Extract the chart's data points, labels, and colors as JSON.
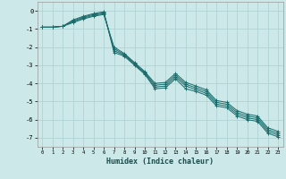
{
  "xlabel": "Humidex (Indice chaleur)",
  "bg_color": "#cce8e8",
  "grid_color": "#aacfcf",
  "line_color": "#1a6b6b",
  "xlim": [
    -0.5,
    23.5
  ],
  "ylim": [
    -7.5,
    0.5
  ],
  "xticks": [
    0,
    1,
    2,
    3,
    4,
    5,
    6,
    7,
    8,
    9,
    10,
    11,
    12,
    13,
    14,
    15,
    16,
    17,
    18,
    19,
    20,
    21,
    22,
    23
  ],
  "yticks": [
    0,
    -1,
    -2,
    -3,
    -4,
    -5,
    -6,
    -7
  ],
  "series": [
    {
      "x": [
        0,
        1,
        2,
        3,
        4,
        5,
        6,
        7,
        8,
        9,
        10,
        11,
        12,
        13,
        14,
        15,
        16,
        17,
        18,
        19,
        20,
        21,
        22,
        23
      ],
      "y": [
        -0.9,
        -0.9,
        -0.85,
        -0.5,
        -0.3,
        -0.15,
        -0.05,
        -2.3,
        -2.5,
        -3.0,
        -3.5,
        -4.3,
        -4.25,
        -3.75,
        -4.3,
        -4.45,
        -4.65,
        -5.25,
        -5.35,
        -5.8,
        -6.0,
        -6.1,
        -6.75,
        -6.95
      ]
    },
    {
      "x": [
        0,
        1,
        2,
        3,
        4,
        5,
        6,
        7,
        8,
        9,
        10,
        11,
        12,
        13,
        14,
        15,
        16,
        17,
        18,
        19,
        20,
        21,
        22,
        23
      ],
      "y": [
        -0.9,
        -0.9,
        -0.85,
        -0.55,
        -0.35,
        -0.2,
        -0.1,
        -2.2,
        -2.45,
        -2.95,
        -3.45,
        -4.2,
        -4.15,
        -3.65,
        -4.15,
        -4.35,
        -4.55,
        -5.15,
        -5.25,
        -5.7,
        -5.9,
        -6.0,
        -6.65,
        -6.85
      ]
    },
    {
      "x": [
        0,
        1,
        2,
        3,
        4,
        5,
        6,
        7,
        8,
        9,
        10,
        11,
        12,
        13,
        14,
        15,
        16,
        17,
        18,
        19,
        20,
        21,
        22,
        23
      ],
      "y": [
        -0.9,
        -0.9,
        -0.85,
        -0.6,
        -0.4,
        -0.25,
        -0.15,
        -2.1,
        -2.4,
        -2.9,
        -3.4,
        -4.1,
        -4.05,
        -3.55,
        -4.05,
        -4.25,
        -4.45,
        -5.05,
        -5.15,
        -5.6,
        -5.8,
        -5.9,
        -6.55,
        -6.75
      ]
    },
    {
      "x": [
        0,
        1,
        2,
        3,
        4,
        5,
        6,
        7,
        8,
        9,
        10,
        11,
        12,
        13,
        14,
        15,
        16,
        17,
        18,
        19,
        20,
        21,
        22,
        23
      ],
      "y": [
        -0.9,
        -0.9,
        -0.85,
        -0.65,
        -0.45,
        -0.3,
        -0.2,
        -2.0,
        -2.35,
        -2.85,
        -3.35,
        -4.0,
        -3.95,
        -3.45,
        -3.95,
        -4.15,
        -4.35,
        -4.95,
        -5.05,
        -5.5,
        -5.7,
        -5.8,
        -6.45,
        -6.65
      ]
    }
  ]
}
